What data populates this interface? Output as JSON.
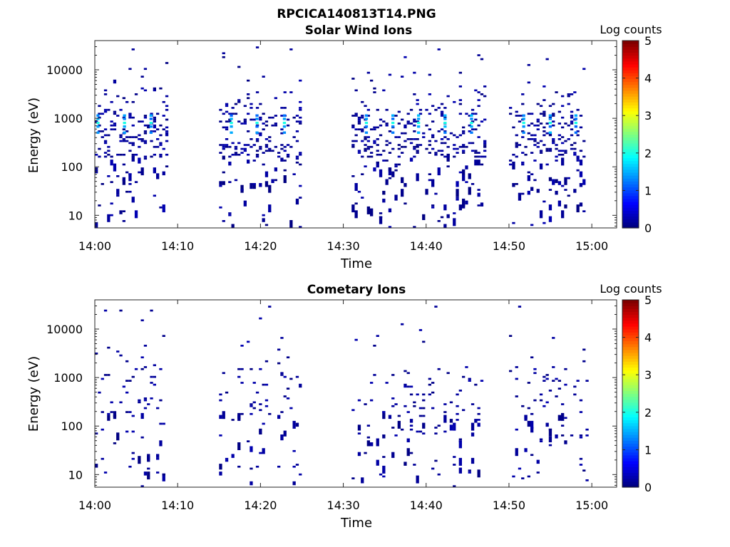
{
  "figure": {
    "title": "RPCICA140813T14.PNG"
  },
  "chart_data": [
    {
      "type": "heatmap",
      "title": "Solar Wind Ions",
      "xlabel": "Time",
      "ylabel": "Energy (eV)",
      "x_range_minutes": [
        0,
        63
      ],
      "y_log": true,
      "ylim": [
        5.5,
        40000
      ],
      "x_ticks": [
        "14:00",
        "14:10",
        "14:20",
        "14:30",
        "14:40",
        "14:50",
        "15:00"
      ],
      "y_ticks": [
        "10",
        "100",
        "1000",
        "10000"
      ],
      "colorbar": {
        "label": "Log counts",
        "ticks": [
          "0",
          "1",
          "2",
          "3",
          "4",
          "5"
        ],
        "range": [
          0,
          5
        ]
      },
      "bursts_start_minutes": [
        0,
        15,
        31,
        50
      ],
      "burst_end_minutes": [
        8.6,
        24.8,
        47.0,
        59.0
      ],
      "peak_energy_eV": 800,
      "peak_log_counts_max": 2.0,
      "peak_times_minutes": [
        0.2,
        3.4,
        6.6,
        16.3,
        19.4,
        22.7,
        32.6,
        35.8,
        38.9,
        42.1,
        45.3,
        51.6,
        54.8,
        57.9
      ]
    },
    {
      "type": "heatmap",
      "title": "Cometary Ions",
      "xlabel": "Time",
      "ylabel": "Energy (eV)",
      "x_range_minutes": [
        0,
        63
      ],
      "y_log": true,
      "ylim": [
        5.5,
        40000
      ],
      "x_ticks": [
        "14:00",
        "14:10",
        "14:20",
        "14:30",
        "14:40",
        "14:50",
        "15:00"
      ],
      "y_ticks": [
        "10",
        "100",
        "1000",
        "10000"
      ],
      "colorbar": {
        "label": "Log counts",
        "ticks": [
          "0",
          "1",
          "2",
          "3",
          "4",
          "5"
        ],
        "range": [
          0,
          5
        ]
      },
      "bursts_start_minutes": [
        0,
        15,
        31,
        50
      ],
      "burst_end_minutes": [
        8.6,
        24.8,
        46.6,
        59.5
      ],
      "peak_log_counts_max": 0.5
    }
  ],
  "colors": {
    "background": "#ffffff",
    "axis": "#262626",
    "low_count": "#00008f"
  }
}
